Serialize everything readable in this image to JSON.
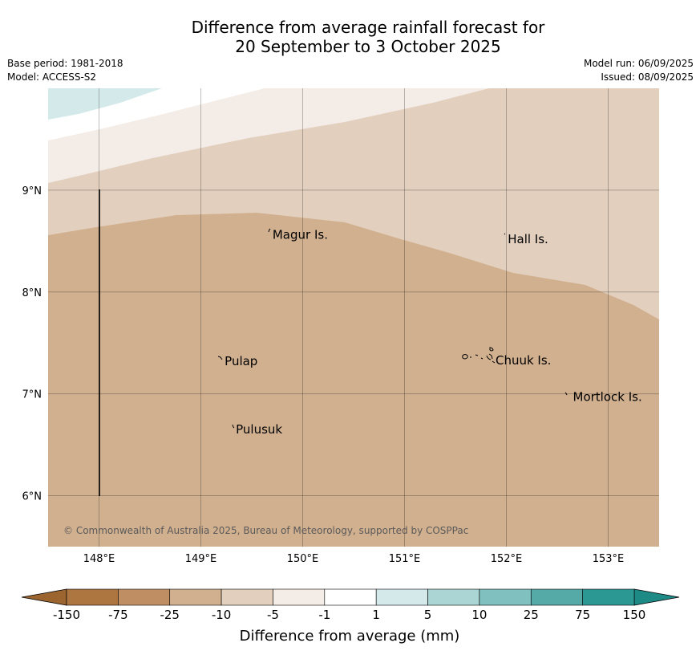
{
  "title_line1": "Difference from average rainfall forecast for",
  "title_line2": "20 September to 3 October 2025",
  "base_period": "Base period: 1981-2018",
  "model": "Model: ACCESS-S2",
  "model_run": "Model run: 06/09/2025",
  "issued": "Issued: 08/09/2025",
  "copyright": "© Commonwealth of Australia 2025, Bureau of Meteorology, supported by COSPPac",
  "map_extent": {
    "lon_min": 147.5,
    "lon_max": 153.5,
    "lat_min": 5.5,
    "lat_max": 10.0
  },
  "lat_ticks": [
    {
      "value": 9,
      "label": "9°N"
    },
    {
      "value": 8,
      "label": "8°N"
    },
    {
      "value": 7,
      "label": "7°N"
    },
    {
      "value": 6,
      "label": "6°N"
    }
  ],
  "lon_ticks": [
    {
      "value": 148,
      "label": "148°E"
    },
    {
      "value": 149,
      "label": "149°E"
    },
    {
      "value": 150,
      "label": "150°E"
    },
    {
      "value": 151,
      "label": "151°E"
    },
    {
      "value": 152,
      "label": "152°E"
    },
    {
      "value": 153,
      "label": "153°E"
    }
  ],
  "places": [
    {
      "name": "Magur Is.",
      "lon": 149.68,
      "lat": 8.56
    },
    {
      "name": "Hall Is.",
      "lon": 151.99,
      "lat": 8.52
    },
    {
      "name": "Pulap",
      "lon": 149.21,
      "lat": 7.32
    },
    {
      "name": "Chuuk Is.",
      "lon": 151.87,
      "lat": 7.33
    },
    {
      "name": "Mortlock Is.",
      "lon": 152.63,
      "lat": 6.97
    },
    {
      "name": "Pulusuk",
      "lon": 149.32,
      "lat": 6.65
    }
  ],
  "colorbar": {
    "labels": [
      "-150",
      "-75",
      "-25",
      "-10",
      "-5",
      "-1",
      "1",
      "5",
      "10",
      "25",
      "75",
      "150"
    ],
    "colors": [
      "#ad7540",
      "#bf8f63",
      "#d1b08f",
      "#e2cfbd",
      "#f4ece7",
      "#ffffff",
      "#d4eaea",
      "#aad5d4",
      "#80c0be",
      "#55aaa8",
      "#2b9894"
    ],
    "extend_min_color": "#9c652f",
    "extend_max_color": "#1d8a86",
    "title": "Difference from average (mm)"
  }
}
